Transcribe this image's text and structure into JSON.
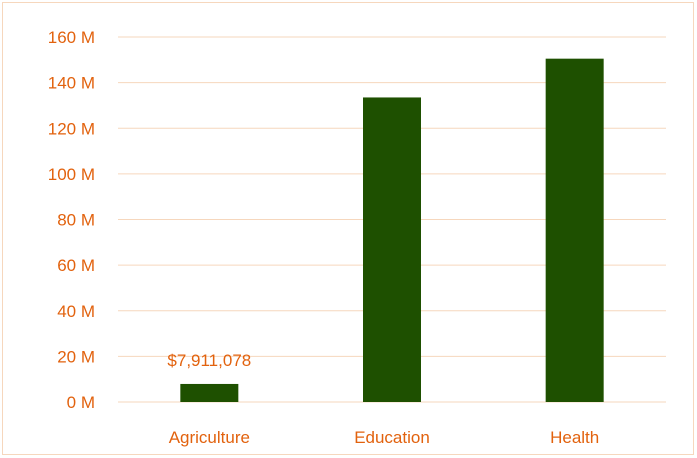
{
  "chart_data": {
    "type": "bar",
    "categories": [
      "Agriculture",
      "Education",
      "Health"
    ],
    "values": [
      7911078,
      133500000,
      150500000
    ],
    "ylim": [
      0,
      160000000
    ],
    "yticks": [
      {
        "value": 0,
        "label": "0 M"
      },
      {
        "value": 20000000,
        "label": "20 M"
      },
      {
        "value": 40000000,
        "label": "40 M"
      },
      {
        "value": 60000000,
        "label": "60 M"
      },
      {
        "value": 80000000,
        "label": "80 M"
      },
      {
        "value": 100000000,
        "label": "100 M"
      },
      {
        "value": 120000000,
        "label": "120 M"
      },
      {
        "value": 140000000,
        "label": "140 M"
      },
      {
        "value": 160000000,
        "label": "160 M"
      }
    ],
    "data_labels": [
      "$7,911,078",
      "",
      ""
    ],
    "grid": true,
    "legend": "none",
    "colors": {
      "bar": "#1e5000",
      "text": "#e2620e",
      "grid": "#f6d7bd",
      "border": "#f6d7bd"
    }
  }
}
